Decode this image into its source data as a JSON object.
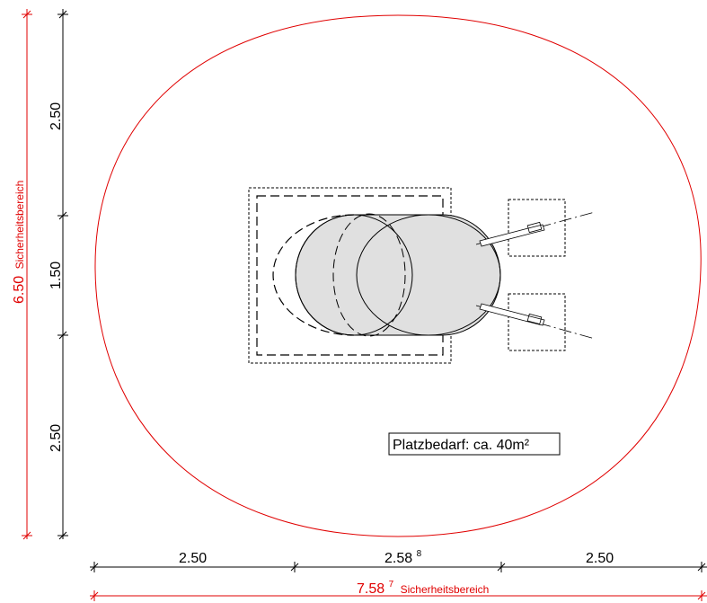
{
  "colors": {
    "safety": "#e00000",
    "line": "#000000",
    "fill": "#e0e0e0"
  },
  "dimensions": {
    "vertical": {
      "top": "2.50",
      "middle": "1.50",
      "bottom": "2.50",
      "safety_value": "6.50",
      "safety_label": "Sicherheitsbereich"
    },
    "horizontal": {
      "left": "2.50",
      "middle": "2.58",
      "middle_sup": "8",
      "right": "2.50",
      "safety_value": "7.58",
      "safety_sup": "7",
      "safety_label": "Sicherheitsbereich"
    }
  },
  "label": {
    "space_requirement": "Platzbedarf: ca. 40m²"
  }
}
